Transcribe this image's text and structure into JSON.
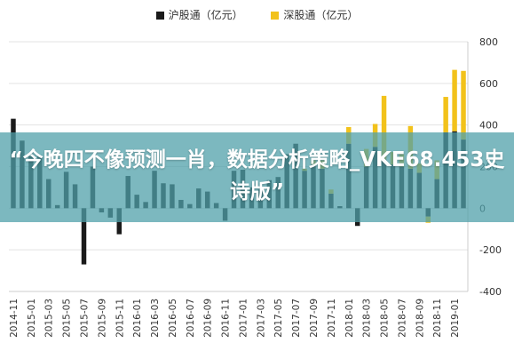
{
  "chart_data": {
    "type": "bar",
    "stacked": true,
    "legend_position": "top-center",
    "grid": "horizontal",
    "categories": [
      "2014-11",
      "2014-12",
      "2015-01",
      "2015-02",
      "2015-03",
      "2015-04",
      "2015-05",
      "2015-06",
      "2015-07",
      "2015-08",
      "2015-09",
      "2015-10",
      "2015-11",
      "2015-12",
      "2016-01",
      "2016-02",
      "2016-03",
      "2016-04",
      "2016-05",
      "2016-06",
      "2016-07",
      "2016-08",
      "2016-09",
      "2016-10",
      "2016-11",
      "2016-12",
      "2017-01",
      "2017-02",
      "2017-03",
      "2017-04",
      "2017-05",
      "2017-06",
      "2017-07",
      "2017-08",
      "2017-09",
      "2017-10",
      "2017-11",
      "2017-12",
      "2018-01",
      "2018-02",
      "2018-03",
      "2018-04",
      "2018-05",
      "2018-06",
      "2018-07",
      "2018-08",
      "2018-09",
      "2018-10",
      "2018-11",
      "2018-12",
      "2019-01",
      "2019-02"
    ],
    "x_tick_labels": [
      "2014-11",
      "2015-01",
      "2015-03",
      "2015-05",
      "2015-07",
      "2015-09",
      "2015-11",
      "2016-01",
      "2016-03",
      "2016-05",
      "2016-07",
      "2016-09",
      "2016-11",
      "2017-01",
      "2017-03",
      "2017-05",
      "2017-07",
      "2017-09",
      "2017-11",
      "2018-01",
      "2018-03",
      "2018-05",
      "2018-07",
      "2018-09",
      "2018-11",
      "2019-01"
    ],
    "series": [
      {
        "name": "沪股通（亿元）",
        "color": "#1a1a1a",
        "values": [
          430,
          325,
          250,
          255,
          140,
          15,
          175,
          115,
          -270,
          200,
          -20,
          -45,
          -125,
          155,
          65,
          30,
          180,
          120,
          115,
          40,
          20,
          95,
          80,
          25,
          -60,
          180,
          185,
          100,
          90,
          135,
          150,
          260,
          310,
          180,
          210,
          190,
          70,
          10,
          310,
          -85,
          200,
          295,
          235,
          210,
          200,
          190,
          170,
          -40,
          140,
          365,
          370,
          330
        ]
      },
      {
        "name": "深股通（亿元）",
        "color": "#f2c21b",
        "values": [
          0,
          0,
          0,
          0,
          0,
          0,
          0,
          0,
          0,
          0,
          0,
          0,
          0,
          0,
          0,
          0,
          0,
          0,
          0,
          0,
          0,
          0,
          0,
          0,
          0,
          0,
          0,
          0,
          0,
          0,
          0,
          0,
          0,
          10,
          20,
          40,
          20,
          0,
          80,
          0,
          85,
          110,
          305,
          60,
          60,
          205,
          45,
          -30,
          90,
          170,
          295,
          330
        ]
      }
    ],
    "ylim": [
      -400,
      800
    ],
    "y_ticks": [
      800,
      600,
      400,
      200,
      0,
      -200,
      -400
    ],
    "y_tick_labels": [
      "800",
      "600",
      "400",
      "200",
      "0",
      "-200",
      "-400"
    ]
  },
  "overlay_text": "“今晚四不像预测一肖，数据分析策略_VKE68.453史诗版”"
}
